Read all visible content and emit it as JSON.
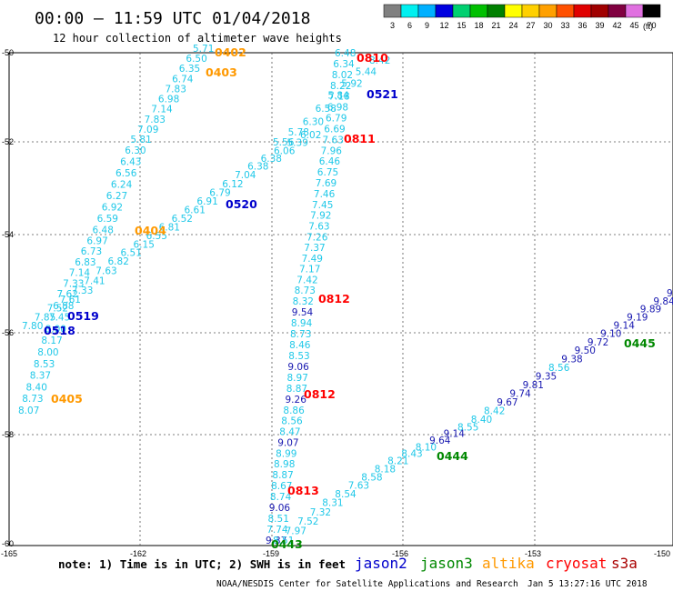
{
  "header": {
    "title": "00:00 – 11:59 UTC 01/04/2018",
    "subtitle": "12 hour collection of altimeter wave heights"
  },
  "scale": {
    "unit": "(ft)",
    "swatches": [
      {
        "label": "3",
        "color": "#808080"
      },
      {
        "label": "6",
        "color": "#00f0f0"
      },
      {
        "label": "9",
        "color": "#00b0ff"
      },
      {
        "label": "12",
        "color": "#0000e0"
      },
      {
        "label": "15",
        "color": "#00d070"
      },
      {
        "label": "18",
        "color": "#00c000"
      },
      {
        "label": "21",
        "color": "#008000"
      },
      {
        "label": "24",
        "color": "#ffff00"
      },
      {
        "label": "27",
        "color": "#ffd000"
      },
      {
        "label": "30",
        "color": "#ffa000"
      },
      {
        "label": "33",
        "color": "#ff5000"
      },
      {
        "label": "36",
        "color": "#e00000"
      },
      {
        "label": "39",
        "color": "#a00000"
      },
      {
        "label": "42",
        "color": "#800040"
      },
      {
        "label": "45",
        "color": "#e070e0"
      },
      {
        "label": "70",
        "color": "#000000"
      }
    ]
  },
  "axes": {
    "lon_labels": [
      "-165",
      "-162",
      "-159",
      "-156",
      "-153",
      "-150"
    ],
    "lat_labels": [
      "-50",
      "-52",
      "-54",
      "-56",
      "-58",
      "-60"
    ]
  },
  "colors": {
    "low": "#20c8e8",
    "mid": "#1818b0"
  },
  "tracks": [
    {
      "name": "track-0402-0405",
      "points": [
        {
          "value": "5.71",
          "c": "low"
        },
        {
          "value": "6.50",
          "c": "low"
        },
        {
          "value": "6.35",
          "c": "low"
        },
        {
          "value": "6.74",
          "c": "low"
        },
        {
          "value": "7.83",
          "c": "low"
        },
        {
          "value": "6.98",
          "c": "low"
        },
        {
          "value": "7.14",
          "c": "low"
        },
        {
          "value": "7.83",
          "c": "low"
        },
        {
          "value": "7.09",
          "c": "low"
        },
        {
          "value": "5.81",
          "c": "low"
        },
        {
          "value": "6.30",
          "c": "low"
        },
        {
          "value": "6.43",
          "c": "low"
        },
        {
          "value": "6.56",
          "c": "low"
        },
        {
          "value": "6.24",
          "c": "low"
        },
        {
          "value": "6.27",
          "c": "low"
        },
        {
          "value": "6.92",
          "c": "low"
        },
        {
          "value": "6.59",
          "c": "low"
        },
        {
          "value": "6.48",
          "c": "low"
        },
        {
          "value": "6.97",
          "c": "low"
        },
        {
          "value": "6.73",
          "c": "low"
        },
        {
          "value": "6.83",
          "c": "low"
        },
        {
          "value": "7.14",
          "c": "low"
        },
        {
          "value": "7.33",
          "c": "low"
        },
        {
          "value": "7.62",
          "c": "low"
        },
        {
          "value": "6.88",
          "c": "low"
        },
        {
          "value": "7.45",
          "c": "low"
        },
        {
          "value": "8.00",
          "c": "low"
        },
        {
          "value": "8.17",
          "c": "low"
        },
        {
          "value": "8.00",
          "c": "low"
        },
        {
          "value": "8.53",
          "c": "low"
        },
        {
          "value": "8.37",
          "c": "low"
        },
        {
          "value": "8.40",
          "c": "low"
        },
        {
          "value": "8.73",
          "c": "low"
        },
        {
          "value": "8.07",
          "c": "low"
        }
      ]
    },
    {
      "name": "track-0520-0519",
      "points": [
        {
          "value": "6.02",
          "c": "low"
        },
        {
          "value": "5.39",
          "c": "low"
        },
        {
          "value": "6.06",
          "c": "low"
        },
        {
          "value": "6.38",
          "c": "low"
        },
        {
          "value": "6.38",
          "c": "low"
        },
        {
          "value": "7.04",
          "c": "low"
        },
        {
          "value": "6.12",
          "c": "low"
        },
        {
          "value": "6.79",
          "c": "low"
        },
        {
          "value": "6.91",
          "c": "low"
        },
        {
          "value": "6.61",
          "c": "low"
        },
        {
          "value": "6.52",
          "c": "low"
        },
        {
          "value": "6.81",
          "c": "low"
        },
        {
          "value": "6.55",
          "c": "low"
        },
        {
          "value": "6.15",
          "c": "low"
        },
        {
          "value": "6.51",
          "c": "low"
        },
        {
          "value": "6.82",
          "c": "low"
        },
        {
          "value": "7.63",
          "c": "low"
        },
        {
          "value": "7.41",
          "c": "low"
        },
        {
          "value": "7.33",
          "c": "low"
        },
        {
          "value": "7.61",
          "c": "low"
        },
        {
          "value": "7.52",
          "c": "low"
        },
        {
          "value": "7.85",
          "c": "low"
        },
        {
          "value": "7.80",
          "c": "low"
        }
      ]
    },
    {
      "name": "track-0810-0443",
      "points": [
        {
          "value": "6.48",
          "c": "low"
        },
        {
          "value": "6.34",
          "c": "low"
        },
        {
          "value": "8.02",
          "c": "low"
        },
        {
          "value": "8.22",
          "c": "low"
        },
        {
          "value": "7.18",
          "c": "low"
        },
        {
          "value": "6.98",
          "c": "low"
        },
        {
          "value": "6.79",
          "c": "low"
        },
        {
          "value": "6.69",
          "c": "low"
        },
        {
          "value": "7.63",
          "c": "low"
        },
        {
          "value": "7.96",
          "c": "low"
        },
        {
          "value": "6.46",
          "c": "low"
        },
        {
          "value": "6.75",
          "c": "low"
        },
        {
          "value": "7.69",
          "c": "low"
        },
        {
          "value": "7.46",
          "c": "low"
        },
        {
          "value": "7.45",
          "c": "low"
        },
        {
          "value": "7.92",
          "c": "low"
        },
        {
          "value": "7.63",
          "c": "low"
        },
        {
          "value": "7.26",
          "c": "low"
        },
        {
          "value": "7.37",
          "c": "low"
        },
        {
          "value": "7.49",
          "c": "low"
        },
        {
          "value": "7.17",
          "c": "low"
        },
        {
          "value": "7.42",
          "c": "low"
        },
        {
          "value": "8.73",
          "c": "low"
        },
        {
          "value": "8.32",
          "c": "low"
        },
        {
          "value": "9.54",
          "c": "mid"
        },
        {
          "value": "8.94",
          "c": "low"
        },
        {
          "value": "8.73",
          "c": "low"
        },
        {
          "value": "8.46",
          "c": "low"
        },
        {
          "value": "8.53",
          "c": "low"
        },
        {
          "value": "9.06",
          "c": "mid"
        },
        {
          "value": "8.97",
          "c": "low"
        },
        {
          "value": "8.87",
          "c": "low"
        },
        {
          "value": "9.26",
          "c": "mid"
        },
        {
          "value": "8.86",
          "c": "low"
        },
        {
          "value": "8.56",
          "c": "low"
        },
        {
          "value": "8.47",
          "c": "low"
        },
        {
          "value": "9.07",
          "c": "mid"
        },
        {
          "value": "8.99",
          "c": "low"
        },
        {
          "value": "8.98",
          "c": "low"
        },
        {
          "value": "8.87",
          "c": "low"
        },
        {
          "value": "8.67",
          "c": "low"
        },
        {
          "value": "8.74",
          "c": "low"
        },
        {
          "value": "9.06",
          "c": "mid"
        },
        {
          "value": "8.51",
          "c": "low"
        },
        {
          "value": "7.74",
          "c": "low"
        },
        {
          "value": "9.37",
          "c": "mid"
        }
      ]
    },
    {
      "name": "track-0521-0811",
      "points": [
        {
          "value": "8.42",
          "c": "low"
        },
        {
          "value": "5.44",
          "c": "low"
        },
        {
          "value": "5.92",
          "c": "low"
        },
        {
          "value": "5.84",
          "c": "low"
        },
        {
          "value": "6.58",
          "c": "low"
        },
        {
          "value": "6.30",
          "c": "low"
        },
        {
          "value": "5.78",
          "c": "low"
        },
        {
          "value": "5.56",
          "c": "low"
        }
      ]
    },
    {
      "name": "track-0443-0445",
      "points": [
        {
          "value": "8.51",
          "c": "low"
        },
        {
          "value": "7.97",
          "c": "low"
        },
        {
          "value": "7.52",
          "c": "low"
        },
        {
          "value": "7.32",
          "c": "low"
        },
        {
          "value": "8.31",
          "c": "low"
        },
        {
          "value": "8.54",
          "c": "low"
        },
        {
          "value": "7.63",
          "c": "low"
        },
        {
          "value": "8.58",
          "c": "low"
        },
        {
          "value": "8.18",
          "c": "low"
        },
        {
          "value": "8.21",
          "c": "low"
        },
        {
          "value": "8.43",
          "c": "low"
        },
        {
          "value": "8.10",
          "c": "low"
        },
        {
          "value": "9.64",
          "c": "mid"
        },
        {
          "value": "9.14",
          "c": "mid"
        },
        {
          "value": "8.55",
          "c": "low"
        },
        {
          "value": "8.40",
          "c": "low"
        },
        {
          "value": "8.42",
          "c": "low"
        },
        {
          "value": "9.67",
          "c": "mid"
        },
        {
          "value": "9.74",
          "c": "mid"
        },
        {
          "value": "9.81",
          "c": "mid"
        },
        {
          "value": "9.35",
          "c": "mid"
        },
        {
          "value": "8.56",
          "c": "low"
        },
        {
          "value": "9.38",
          "c": "mid"
        },
        {
          "value": "9.50",
          "c": "mid"
        },
        {
          "value": "9.72",
          "c": "mid"
        },
        {
          "value": "9.10",
          "c": "mid"
        },
        {
          "value": "9.14",
          "c": "mid"
        },
        {
          "value": "9.19",
          "c": "mid"
        },
        {
          "value": "9.89",
          "c": "mid"
        },
        {
          "value": "9.84",
          "c": "mid"
        },
        {
          "value": "9.8",
          "c": "mid"
        }
      ]
    }
  ],
  "pass_labels": [
    {
      "text": "0402",
      "color": "#ff9900"
    },
    {
      "text": "0403",
      "color": "#ff9900"
    },
    {
      "text": "0404",
      "color": "#ff9900"
    },
    {
      "text": "0405",
      "color": "#ff9900"
    },
    {
      "text": "0810",
      "color": "#ff0000"
    },
    {
      "text": "0811",
      "color": "#ff0000"
    },
    {
      "text": "0812",
      "color": "#ff0000"
    },
    {
      "text": "0812",
      "color": "#ff0000"
    },
    {
      "text": "0813",
      "color": "#ff0000"
    },
    {
      "text": "0521",
      "color": "#0000cc"
    },
    {
      "text": "0520",
      "color": "#0000cc"
    },
    {
      "text": "0519",
      "color": "#0000cc"
    },
    {
      "text": "0518",
      "color": "#0000cc"
    },
    {
      "text": "0443",
      "color": "#008800"
    },
    {
      "text": "0444",
      "color": "#008800"
    },
    {
      "text": "0445",
      "color": "#008800"
    }
  ],
  "footer": {
    "note": "note:  1) Time is in UTC;  2) SWH is in feet",
    "legend": [
      {
        "name": "jason2",
        "color": "#0000cc"
      },
      {
        "name": "jason3",
        "color": "#008800"
      },
      {
        "name": "altika",
        "color": "#ff9900"
      },
      {
        "name": "cryosat",
        "color": "#ff0000"
      },
      {
        "name": "s3a",
        "color": "#aa0000"
      }
    ],
    "credit": "NOAA/NESDIS Center for Satellite Applications and Research",
    "timestamp": "Jan  5 13:27:16 UTC 2018"
  }
}
